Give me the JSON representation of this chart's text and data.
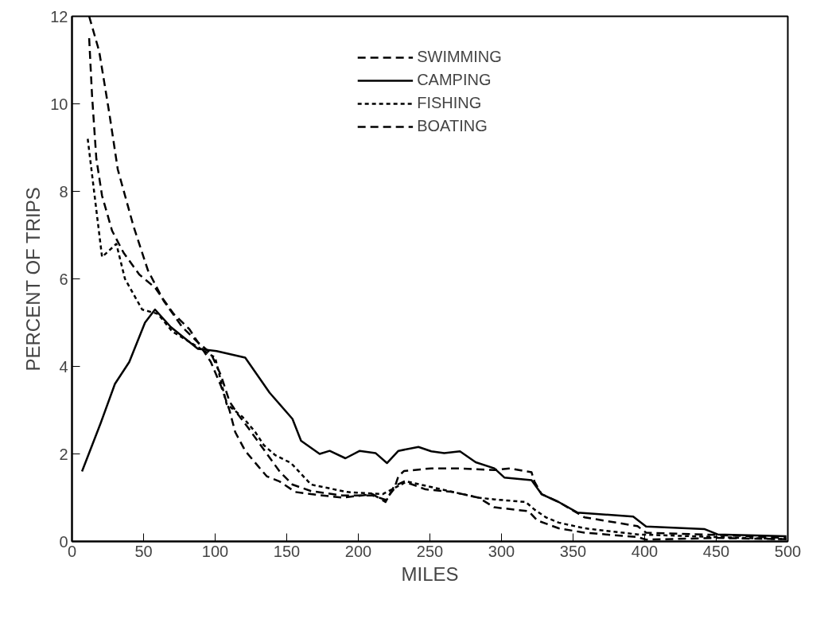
{
  "chart_data": {
    "type": "line",
    "xlabel": "MILES",
    "ylabel": "PERCENT OF TRIPS",
    "xlim": [
      0,
      500
    ],
    "ylim": [
      0,
      12
    ],
    "xticks": [
      0,
      50,
      100,
      150,
      200,
      250,
      300,
      350,
      400,
      450,
      500
    ],
    "yticks": [
      0,
      2,
      4,
      6,
      8,
      10,
      12
    ],
    "grid": false,
    "legend": "top",
    "marker": "none",
    "series": [
      {
        "name": "SWIMMING",
        "color": "#000000",
        "line_style": "dashed",
        "x": [
          12,
          14,
          17,
          21,
          28,
          36,
          47,
          58,
          71,
          82,
          97,
          104,
          110,
          114,
          121,
          130,
          136,
          145,
          156,
          167,
          189,
          210,
          219,
          225,
          232,
          247,
          266,
          284,
          295,
          319,
          325,
          340,
          358,
          395,
          401,
          450,
          499
        ],
        "values": [
          11.5,
          10.2,
          8.75,
          7.9,
          7.1,
          6.6,
          6.1,
          5.8,
          5.2,
          4.85,
          4.1,
          3.56,
          3.0,
          2.5,
          2.07,
          1.72,
          1.49,
          1.37,
          1.13,
          1.08,
          1.0,
          1.08,
          0.9,
          1.26,
          1.37,
          1.19,
          1.13,
          1.0,
          0.78,
          0.69,
          0.48,
          0.3,
          0.2,
          0.1,
          0.04,
          0.08,
          0.05
        ]
      },
      {
        "name": "CAMPING",
        "color": "#000000",
        "line_style": "solid",
        "x": [
          7,
          20,
          30,
          40,
          51,
          58,
          69,
          88,
          101,
          121,
          138,
          154,
          160,
          173,
          180,
          191,
          201,
          212,
          220,
          228,
          242,
          251,
          260,
          271,
          282,
          295,
          302,
          321,
          328,
          340,
          353,
          392,
          401,
          442,
          451,
          499
        ],
        "values": [
          1.6,
          2.7,
          3.6,
          4.1,
          5.0,
          5.3,
          4.9,
          4.4,
          4.35,
          4.2,
          3.4,
          2.8,
          2.3,
          2.0,
          2.07,
          1.9,
          2.07,
          2.02,
          1.79,
          2.07,
          2.16,
          2.06,
          2.02,
          2.06,
          1.81,
          1.67,
          1.46,
          1.4,
          1.08,
          0.9,
          0.66,
          0.57,
          0.34,
          0.28,
          0.16,
          0.12
        ]
      },
      {
        "name": "FISHING",
        "color": "#000000",
        "line_style": "dotted",
        "x": [
          11,
          21,
          31,
          37,
          49,
          60,
          70,
          80,
          90,
          100,
          108,
          119,
          128,
          134,
          142,
          153,
          167,
          192,
          217,
          234,
          258,
          284,
          295,
          317,
          323,
          331,
          340,
          358,
          395,
          450,
          499
        ],
        "values": [
          9.2,
          6.5,
          6.8,
          6.0,
          5.3,
          5.2,
          4.8,
          4.6,
          4.4,
          4.2,
          3.14,
          2.85,
          2.5,
          2.2,
          1.97,
          1.79,
          1.3,
          1.13,
          1.08,
          1.37,
          1.19,
          1.0,
          0.96,
          0.9,
          0.73,
          0.55,
          0.43,
          0.3,
          0.16,
          0.1,
          0.05
        ]
      },
      {
        "name": "BOATING",
        "color": "#000000",
        "line_style": "dashed",
        "x": [
          12,
          19,
          26,
          32,
          43,
          53,
          64,
          77,
          88,
          97,
          104,
          110,
          116,
          123,
          134,
          145,
          154,
          167,
          189,
          210,
          219,
          225,
          228,
          232,
          251,
          269,
          295,
          306,
          321,
          323,
          328,
          340,
          358,
          395,
          401,
          450,
          499
        ],
        "values": [
          12,
          11.2,
          9.8,
          8.5,
          7.2,
          6.2,
          5.5,
          4.9,
          4.55,
          4.3,
          3.8,
          3.2,
          2.9,
          2.6,
          2.1,
          1.6,
          1.3,
          1.15,
          1.05,
          1.05,
          0.95,
          1.2,
          1.49,
          1.61,
          1.67,
          1.67,
          1.63,
          1.67,
          1.58,
          1.37,
          1.08,
          0.9,
          0.55,
          0.35,
          0.2,
          0.15,
          0.08
        ]
      }
    ]
  }
}
